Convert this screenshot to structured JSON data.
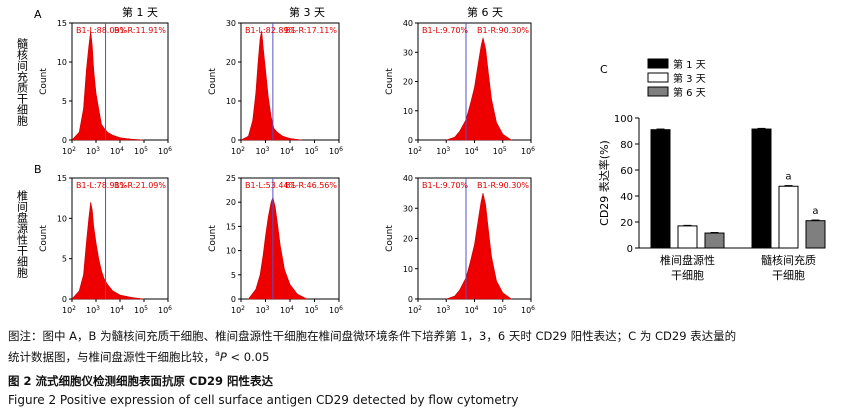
{
  "figure": {
    "panel_labels": {
      "a": "A",
      "b": "B",
      "c": "C"
    },
    "row_labels": [
      "髓核间充质干细胞",
      "椎间盘源性干细胞"
    ],
    "column_headers": [
      "第 1 天",
      "第 3 天",
      "第 6 天"
    ],
    "histogram_ylabel": "Count",
    "histogram_xticks": [
      "10",
      "10",
      "10",
      "10",
      "10"
    ],
    "histogram_xtick_exponents": [
      "2",
      "3",
      "4",
      "5",
      "6"
    ],
    "bar_ylabel": "CD29 表达率(%)",
    "bar_yticks": [
      "0",
      "20",
      "40",
      "60",
      "80",
      "100"
    ],
    "bar_categories": [
      [
        "椎间盘源性",
        "干细胞"
      ],
      [
        "髓核间充质",
        "干细胞"
      ]
    ],
    "bar_legend": [
      "第 1 天",
      "第 3 天",
      "第 6 天"
    ],
    "significance_mark": "a"
  },
  "caption": {
    "note_line1": "图注：图中 A，B 为髓核间充质干细胞、椎间盘源性干细胞在椎间盘微环境条件下培养第 1，3，6 天时 CD29 阳性表达；C 为 CD29 表达量的",
    "note_line2_pre": "统计数据图，与椎间盘源性干细胞比较，",
    "note_sup": "a",
    "note_p": "P",
    "note_line2_post": " < 0.05",
    "title_cn": "图 2   流式细胞仪检测细胞表面抗原 CD29 阳性表达",
    "title_en": "Figure 2    Positive expression of cell surface antigen CD29 detected by flow cytometry"
  },
  "chart_data": [
    {
      "type": "area",
      "panel": "A",
      "row": "髓核间充质干细胞",
      "column": "第 1 天",
      "gate_left": "B1-L:88.09%",
      "gate_right": "B1-R:11.91%",
      "ylabel": "Count",
      "xscale": "log",
      "xlim": [
        100,
        1000000
      ],
      "ylim": [
        0,
        15
      ],
      "yticks": [
        0,
        5,
        10,
        15
      ],
      "gate_x": 2500,
      "x": [
        100,
        200,
        300,
        400,
        500,
        600,
        700,
        800,
        1000,
        1300,
        1700,
        2200,
        3000,
        5000,
        10000,
        30000,
        100000
      ],
      "y": [
        0,
        1,
        4,
        9,
        12,
        14,
        12,
        9,
        6,
        4,
        2,
        1.5,
        1,
        0.6,
        0.3,
        0.1,
        0
      ]
    },
    {
      "type": "area",
      "panel": "A",
      "row": "髓核间充质干细胞",
      "column": "第 3 天",
      "gate_left": "B1-L:82.89%",
      "gate_right": "B1-R:17.11%",
      "ylabel": "Count",
      "xscale": "log",
      "xlim": [
        100,
        1000000
      ],
      "ylim": [
        0,
        30
      ],
      "yticks": [
        0,
        10,
        20,
        30
      ],
      "gate_x": 2000,
      "x": [
        100,
        200,
        300,
        400,
        500,
        600,
        700,
        800,
        1000,
        1300,
        1700,
        2200,
        3000,
        5000,
        10000,
        30000
      ],
      "y": [
        0,
        1,
        5,
        12,
        20,
        26,
        28,
        24,
        18,
        11,
        6,
        3,
        2,
        1,
        0.4,
        0
      ]
    },
    {
      "type": "area",
      "panel": "A",
      "row": "髓核间充质干细胞",
      "column": "第 6 天",
      "gate_left": "B1-L:9.70%",
      "gate_right": "B1-R:90.30%",
      "ylabel": "Count",
      "xscale": "log",
      "xlim": [
        100,
        1000000
      ],
      "ylim": [
        0,
        40
      ],
      "yticks": [
        0,
        10,
        20,
        30,
        40
      ],
      "gate_x": 5000,
      "x": [
        1000,
        2000,
        3000,
        5000,
        7000,
        10000,
        13000,
        17000,
        20000,
        25000,
        30000,
        40000,
        60000,
        100000,
        200000
      ],
      "y": [
        0,
        1,
        3,
        7,
        12,
        18,
        25,
        32,
        35,
        31,
        24,
        14,
        6,
        2,
        0
      ]
    },
    {
      "type": "area",
      "panel": "B",
      "row": "椎间盘源性干细胞",
      "column": "第 1 天",
      "gate_left": "B1-L:78.91%",
      "gate_right": "B1-R:21.09%",
      "ylabel": "Count",
      "xscale": "log",
      "xlim": [
        100,
        1000000
      ],
      "ylim": [
        0,
        15
      ],
      "yticks": [
        0,
        5,
        10,
        15
      ],
      "gate_x": 2500,
      "x": [
        100,
        200,
        300,
        400,
        500,
        600,
        700,
        800,
        1000,
        1300,
        1700,
        2200,
        3000,
        5000,
        10000,
        30000,
        100000
      ],
      "y": [
        0,
        1,
        3,
        7,
        10,
        12,
        11,
        9,
        7,
        5,
        3.5,
        2.5,
        1.8,
        1,
        0.5,
        0.2,
        0
      ]
    },
    {
      "type": "area",
      "panel": "B",
      "row": "椎间盘源性干细胞",
      "column": "第 3 天",
      "gate_left": "B1-L:53.44%",
      "gate_right": "B1-R:46.56%",
      "ylabel": "Count",
      "xscale": "log",
      "xlim": [
        100,
        1000000
      ],
      "ylim": [
        0,
        25
      ],
      "yticks": [
        0,
        5,
        10,
        15,
        20,
        25
      ],
      "gate_x": 2000,
      "x": [
        200,
        400,
        600,
        800,
        1000,
        1300,
        1700,
        2000,
        2500,
        3000,
        4000,
        6000,
        10000,
        20000,
        50000
      ],
      "y": [
        0,
        2,
        5,
        9,
        13,
        17,
        20,
        21,
        19,
        16,
        11,
        6,
        3,
        1,
        0
      ]
    },
    {
      "type": "area",
      "panel": "B",
      "row": "椎间盘源性干细胞",
      "column": "第 6 天",
      "gate_left": "B1-L:9.70%",
      "gate_right": "B1-R:90.30%",
      "ylabel": "Count",
      "xscale": "log",
      "xlim": [
        100,
        1000000
      ],
      "ylim": [
        0,
        40
      ],
      "yticks": [
        0,
        10,
        20,
        30,
        40
      ],
      "gate_x": 5000,
      "x": [
        1000,
        2000,
        3000,
        5000,
        7000,
        10000,
        13000,
        17000,
        20000,
        25000,
        30000,
        40000,
        60000,
        100000,
        200000
      ],
      "y": [
        0,
        1,
        3,
        7,
        12,
        18,
        25,
        32,
        35,
        31,
        24,
        14,
        6,
        2,
        0
      ]
    },
    {
      "type": "bar",
      "panel": "C",
      "categories": [
        "椎间盘源性干细胞",
        "髓核间充质干细胞"
      ],
      "ylabel": "CD29 表达率(%)",
      "ylim": [
        0,
        100
      ],
      "yticks": [
        0,
        20,
        40,
        60,
        80,
        100
      ],
      "series": [
        {
          "name": "第 1 天",
          "values": [
            91,
            91.5
          ],
          "errors": [
            0.5,
            0.5
          ],
          "color": "#000000"
        },
        {
          "name": "第 3 天",
          "values": [
            17,
            47.5
          ],
          "errors": [
            0.4,
            0.5
          ],
          "color": "#ffffff"
        },
        {
          "name": "第 6 天",
          "values": [
            11.5,
            21
          ],
          "errors": [
            0.4,
            0.5
          ],
          "color": "#7f7f7f"
        }
      ],
      "significance": [
        [
          false,
          false,
          false
        ],
        [
          false,
          true,
          true
        ]
      ]
    }
  ]
}
